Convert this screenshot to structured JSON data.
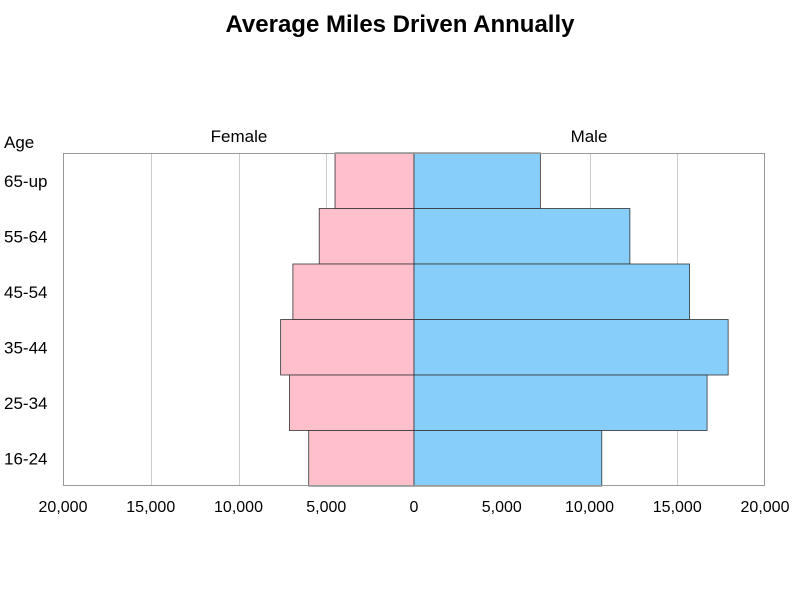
{
  "chart_data": {
    "type": "bar",
    "orientation": "horizontal-butterfly",
    "title": "Average Miles Driven Annually",
    "ylabel": "Age",
    "categories": [
      "65-up",
      "55-64",
      "45-54",
      "35-44",
      "25-34",
      "16-24"
    ],
    "series": [
      {
        "name": "Female",
        "side": "left",
        "color": "#ffc0cb",
        "values": [
          4500,
          5400,
          6900,
          7600,
          7100,
          6000
        ]
      },
      {
        "name": "Male",
        "side": "right",
        "color": "#87cefa",
        "values": [
          7200,
          12300,
          15700,
          17900,
          16700,
          10700
        ]
      }
    ],
    "xlim": [
      -20000,
      20000
    ],
    "xticks": [
      -20000,
      -15000,
      -10000,
      -5000,
      0,
      5000,
      10000,
      15000,
      20000
    ],
    "xtick_labels": [
      "20,000",
      "15,000",
      "10,000",
      "5,000",
      "0",
      "5,000",
      "10,000",
      "15,000",
      "20,000"
    ],
    "grid": true,
    "legend": "none",
    "colors": {
      "bar_outline": "#333333",
      "grid": "#cccccc",
      "frame": "#999999"
    }
  }
}
